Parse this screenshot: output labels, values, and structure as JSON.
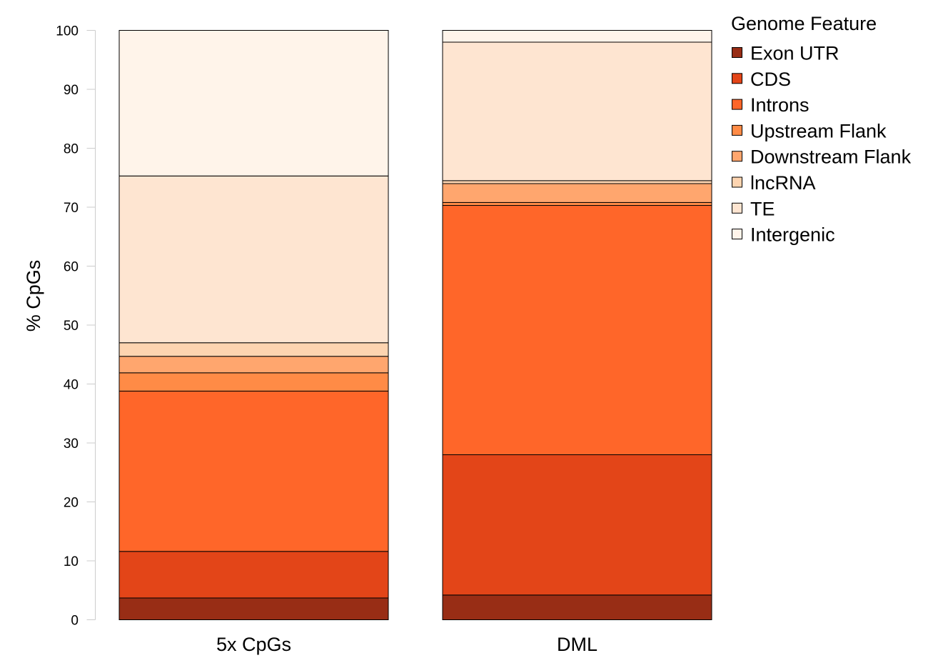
{
  "chart_data": {
    "type": "bar",
    "stacked": true,
    "categories": [
      "5x CpGs",
      "DML"
    ],
    "ylabel": "% CpGs",
    "xlabel": "",
    "ylim": [
      0,
      100
    ],
    "yticks": [
      0,
      10,
      20,
      30,
      40,
      50,
      60,
      70,
      80,
      90,
      100
    ],
    "grid": false,
    "legend": {
      "title": "Genome Feature",
      "placement": "top-right"
    },
    "series": [
      {
        "name": "Exon UTR",
        "color": "#982d15",
        "values": [
          3.7,
          4.2
        ]
      },
      {
        "name": "CDS",
        "color": "#e34518",
        "values": [
          7.9,
          23.8
        ]
      },
      {
        "name": "Introns",
        "color": "#ff6629",
        "values": [
          27.2,
          42.3
        ]
      },
      {
        "name": "Upstream Flank",
        "color": "#ff8b46",
        "values": [
          3.1,
          0.5
        ]
      },
      {
        "name": "Downstream Flank",
        "color": "#ffa66e",
        "values": [
          2.8,
          3.2
        ]
      },
      {
        "name": "lncRNA",
        "color": "#fdd4b0",
        "values": [
          2.3,
          0.5
        ]
      },
      {
        "name": "TE",
        "color": "#fee5d1",
        "values": [
          28.3,
          23.5
        ]
      },
      {
        "name": "Intergenic",
        "color": "#fff4ea",
        "values": [
          24.7,
          2.0
        ]
      }
    ]
  }
}
